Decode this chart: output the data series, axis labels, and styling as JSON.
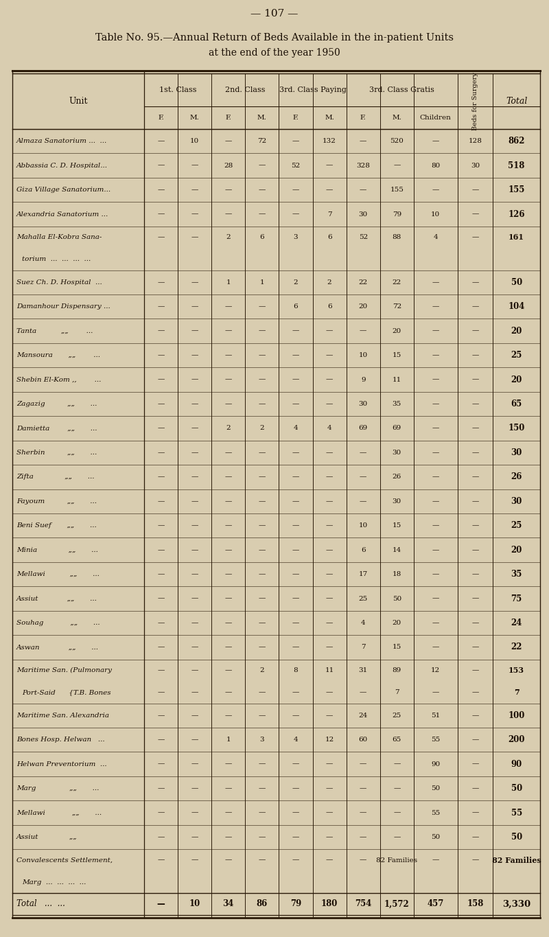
{
  "page_number": "— 107 —",
  "title_line1": "Table No. 95.—Annual Return of Beds Available in the in-patient Units",
  "title_line2": "at the end of the year 1950",
  "col_groups": [
    "1st. Class",
    "2nd. Class",
    "3rd. Class Paying",
    "3rd. Class Gratis"
  ],
  "sub_labels": [
    "F.",
    "M.",
    "F.",
    "M.",
    "F.",
    "M.",
    "F.",
    "M.",
    "Children"
  ],
  "beds_surgery_label": "Beds for Surgery",
  "total_label": "Total",
  "unit_label": "Unit",
  "rows": [
    {
      "name": "Almaza Sanatorium ...  ...",
      "name2": null,
      "vals": [
        "—",
        "10",
        "—",
        "72",
        "—",
        "132",
        "—",
        "520",
        "—",
        "128",
        "862"
      ],
      "vals2": null
    },
    {
      "name": "Abbassia C. D. Hospital...",
      "name2": null,
      "vals": [
        "—",
        "—",
        "28",
        "—",
        "52",
        "—",
        "328",
        "—",
        "80",
        "30",
        "518"
      ],
      "vals2": null
    },
    {
      "name": "Giza Village Sanatorium...",
      "name2": null,
      "vals": [
        "—",
        "—",
        "—",
        "—",
        "—",
        "—",
        "—",
        "155",
        "—",
        "—",
        "155"
      ],
      "vals2": null
    },
    {
      "name": "Alexandria Sanatorium ...",
      "name2": null,
      "vals": [
        "—",
        "—",
        "—",
        "—",
        "—",
        "7",
        "30",
        "79",
        "10",
        "—",
        "126"
      ],
      "vals2": null
    },
    {
      "name": "Mahalla El-Kobra Sana-",
      "name2": "torium  ...  ...  ...  ...",
      "vals": [
        "—",
        "—",
        "2",
        "6",
        "3",
        "6",
        "52",
        "88",
        "4",
        "—",
        "161"
      ],
      "vals2": null
    },
    {
      "name": "Suez Ch. D. Hospital  ...",
      "name2": null,
      "vals": [
        "—",
        "—",
        "1",
        "1",
        "2",
        "2",
        "22",
        "22",
        "—",
        "—",
        "50"
      ],
      "vals2": null
    },
    {
      "name": "Damanhour Dispensary ...",
      "name2": null,
      "vals": [
        "—",
        "—",
        "—",
        "—",
        "6",
        "6",
        "20",
        "72",
        "—",
        "—",
        "104"
      ],
      "vals2": null
    },
    {
      "name": "Tanta           „„        ...",
      "name2": null,
      "vals": [
        "—",
        "—",
        "—",
        "—",
        "—",
        "—",
        "—",
        "20",
        "—",
        "—",
        "20"
      ],
      "vals2": null
    },
    {
      "name": "Mansoura       „„        ...",
      "name2": null,
      "vals": [
        "—",
        "—",
        "—",
        "—",
        "—",
        "—",
        "10",
        "15",
        "—",
        "—",
        "25"
      ],
      "vals2": null
    },
    {
      "name": "Shebin El-Kom ,,        ...",
      "name2": null,
      "vals": [
        "—",
        "—",
        "—",
        "—",
        "—",
        "—",
        "9",
        "11",
        "—",
        "—",
        "20"
      ],
      "vals2": null
    },
    {
      "name": "Zagazig          „„       ...",
      "name2": null,
      "vals": [
        "—",
        "—",
        "—",
        "—",
        "—",
        "—",
        "30",
        "35",
        "—",
        "—",
        "65"
      ],
      "vals2": null
    },
    {
      "name": "Damietta        „„       ...",
      "name2": null,
      "vals": [
        "—",
        "—",
        "2",
        "2",
        "4",
        "4",
        "69",
        "69",
        "—",
        "—",
        "150"
      ],
      "vals2": null
    },
    {
      "name": "Sherbin          „„       ...",
      "name2": null,
      "vals": [
        "—",
        "—",
        "—",
        "—",
        "—",
        "—",
        "—",
        "30",
        "—",
        "—",
        "30"
      ],
      "vals2": null
    },
    {
      "name": "Zifta              „„       ...",
      "name2": null,
      "vals": [
        "—",
        "—",
        "—",
        "—",
        "—",
        "—",
        "—",
        "26",
        "—",
        "—",
        "26"
      ],
      "vals2": null
    },
    {
      "name": "Fayoum          „„       ...",
      "name2": null,
      "vals": [
        "—",
        "—",
        "—",
        "—",
        "—",
        "—",
        "—",
        "30",
        "—",
        "—",
        "30"
      ],
      "vals2": null
    },
    {
      "name": "Beni Suef       „„       ...",
      "name2": null,
      "vals": [
        "—",
        "—",
        "—",
        "—",
        "—",
        "—",
        "10",
        "15",
        "—",
        "—",
        "25"
      ],
      "vals2": null
    },
    {
      "name": "Minia              „„       ...",
      "name2": null,
      "vals": [
        "—",
        "—",
        "—",
        "—",
        "—",
        "—",
        "6",
        "14",
        "—",
        "—",
        "20"
      ],
      "vals2": null
    },
    {
      "name": "Mellawi           „„       ...",
      "name2": null,
      "vals": [
        "—",
        "—",
        "—",
        "—",
        "—",
        "—",
        "17",
        "18",
        "—",
        "—",
        "35"
      ],
      "vals2": null
    },
    {
      "name": "Assiut             „„       ...",
      "name2": null,
      "vals": [
        "—",
        "—",
        "—",
        "—",
        "—",
        "—",
        "25",
        "50",
        "—",
        "—",
        "75"
      ],
      "vals2": null
    },
    {
      "name": "Souhag            „„       ...",
      "name2": null,
      "vals": [
        "—",
        "—",
        "—",
        "—",
        "—",
        "—",
        "4",
        "20",
        "—",
        "—",
        "24"
      ],
      "vals2": null
    },
    {
      "name": "Aswan             „„       ...",
      "name2": null,
      "vals": [
        "—",
        "—",
        "—",
        "—",
        "—",
        "—",
        "7",
        "15",
        "—",
        "—",
        "22"
      ],
      "vals2": null
    },
    {
      "name": "Maritime San. (Pulmonary",
      "name2": "Port-Said      {T.B. Bones",
      "vals": [
        "—",
        "—",
        "—",
        "2",
        "8",
        "11",
        "31",
        "89",
        "12",
        "—",
        "153"
      ],
      "vals2": [
        "—",
        "—",
        "—",
        "—",
        "—",
        "—",
        "—",
        "7",
        "—",
        "—",
        "7"
      ]
    },
    {
      "name": "Maritime San. Alexandria",
      "name2": null,
      "vals": [
        "—",
        "—",
        "—",
        "—",
        "—",
        "—",
        "24",
        "25",
        "51",
        "—",
        "100"
      ],
      "vals2": null
    },
    {
      "name": "Bones Hosp. Helwan   ...",
      "name2": null,
      "vals": [
        "—",
        "—",
        "1",
        "3",
        "4",
        "12",
        "60",
        "65",
        "55",
        "—",
        "200"
      ],
      "vals2": null
    },
    {
      "name": "Helwan Preventorium  ...",
      "name2": null,
      "vals": [
        "—",
        "—",
        "—",
        "—",
        "—",
        "—",
        "—",
        "—",
        "90",
        "—",
        "90"
      ],
      "vals2": null
    },
    {
      "name": "Marg               „„       ...",
      "name2": null,
      "vals": [
        "—",
        "—",
        "—",
        "—",
        "—",
        "—",
        "—",
        "—",
        "50",
        "—",
        "50"
      ],
      "vals2": null
    },
    {
      "name": "Mellawi            „„       ...",
      "name2": null,
      "vals": [
        "—",
        "—",
        "—",
        "—",
        "—",
        "—",
        "—",
        "—",
        "55",
        "—",
        "55"
      ],
      "vals2": null
    },
    {
      "name": "Assiut              „„",
      "name2": null,
      "vals": [
        "—",
        "—",
        "—",
        "—",
        "—",
        "—",
        "—",
        "—",
        "50",
        "—",
        "50"
      ],
      "vals2": null
    },
    {
      "name": "Convalescents Settlement,",
      "name2": "Marg  ...  ...  ...  ...",
      "vals": [
        "—",
        "—",
        "—",
        "—",
        "—",
        "—",
        "—",
        "82 Families",
        "—",
        "—",
        "82 Families"
      ],
      "vals2": null
    }
  ],
  "total_row_vals": [
    "—",
    "10",
    "34",
    "86",
    "79",
    "180",
    "754",
    "1,572",
    "457",
    "158",
    "3,330"
  ],
  "bg_color": "#d9cdb0",
  "text_color": "#1a0e04",
  "line_color": "#2a1a08"
}
